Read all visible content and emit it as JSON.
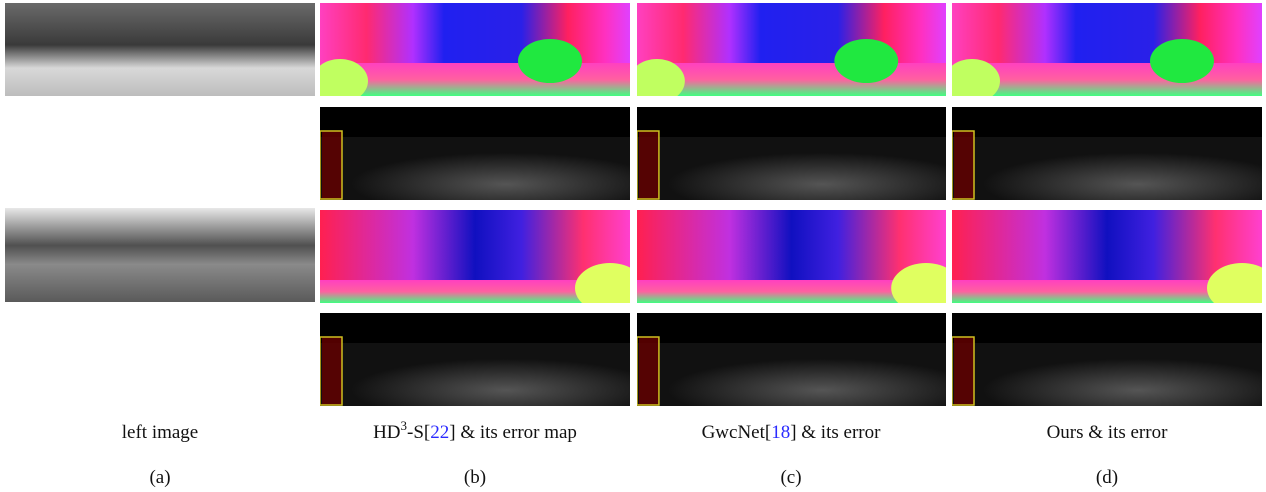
{
  "figure": {
    "columns": [
      {
        "caption": [
          "left image"
        ],
        "label": "(a)"
      },
      {
        "caption": [
          "HD",
          "3",
          "-S[",
          "22",
          "] & its error map"
        ],
        "label": "(b)"
      },
      {
        "caption": [
          "GwcNet[",
          "18",
          "] & its error"
        ],
        "label": "(c)"
      },
      {
        "caption": [
          "Ours & its error"
        ],
        "label": "(d)"
      }
    ]
  }
}
